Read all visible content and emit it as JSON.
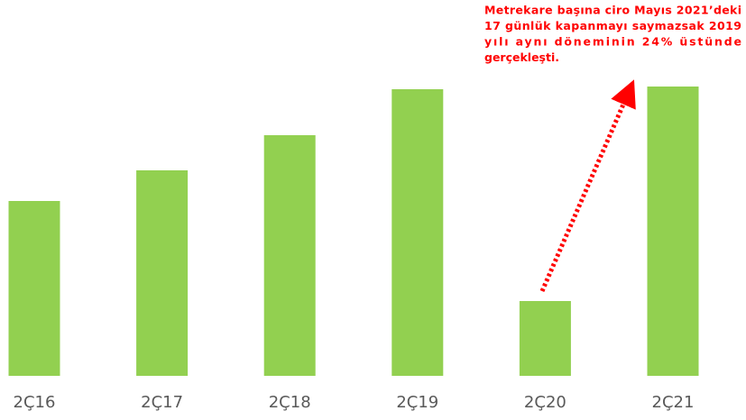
{
  "chart_data": {
    "type": "bar",
    "categories": [
      "2Ç16",
      "2Ç17",
      "2Ç18",
      "2Ç19",
      "2Ç20",
      "2Ç21"
    ],
    "values": [
      194,
      228,
      267,
      318,
      83,
      321
    ],
    "color": "#92d050",
    "ylim": [
      0,
      340
    ],
    "annotation": [
      "Metrekare başına ciro Mayıs 2021’deki",
      "17 günlük kapanmayı saymazsak 2019",
      "yılı aynı döneminin 24% üstünde",
      "gerçekleşti."
    ],
    "annotation_color": "#ff0000"
  }
}
